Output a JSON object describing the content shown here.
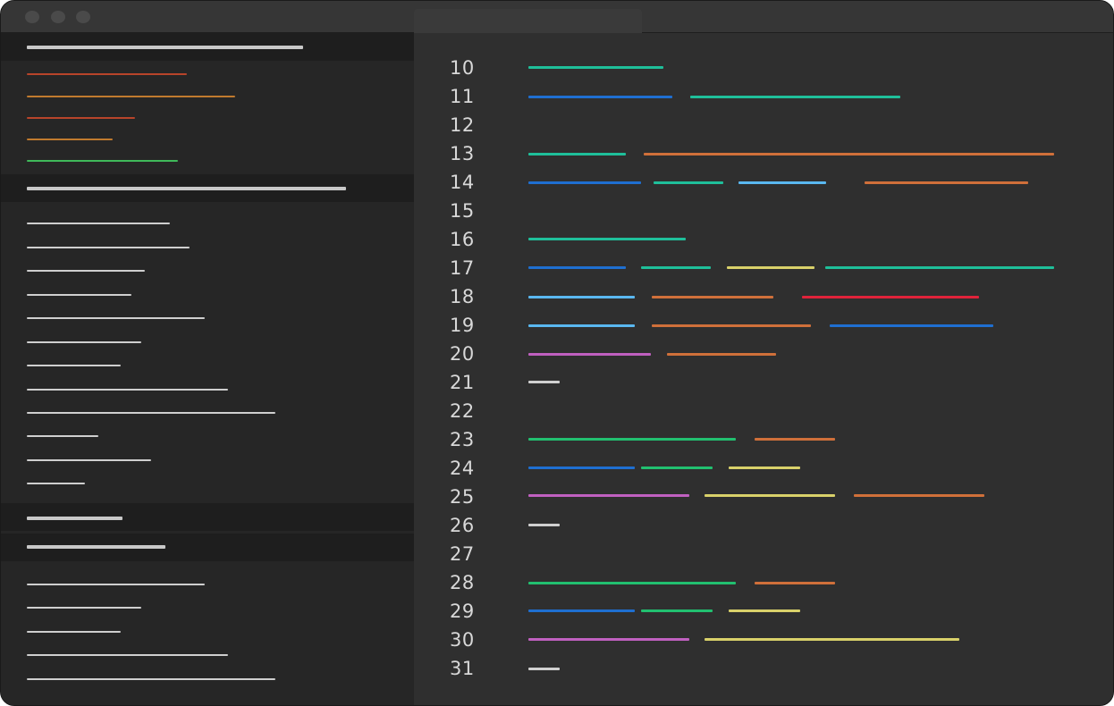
{
  "window": {
    "title": "",
    "active_tab": ""
  },
  "colors": {
    "window_bg": "#2d2d2d",
    "sidebar_bg": "#262626",
    "section_header_bg": "#1e1e1e",
    "editor_bg": "#2f2f2f",
    "line_number": "#d8d8d8",
    "token_teal": "#1fbf9a",
    "token_blue": "#1f6fd1",
    "token_orange": "#d0703a",
    "token_light_blue": "#5ab8f0",
    "token_yellow": "#d9d16a",
    "token_red": "#e0233a",
    "token_purple": "#c060c0",
    "token_green": "#22c070",
    "token_white": "#d0d0d0"
  },
  "editor": {
    "line_numbers": [
      "10",
      "11",
      "12",
      "13",
      "14",
      "15",
      "16",
      "17",
      "18",
      "19",
      "20",
      "21",
      "22",
      "23",
      "24",
      "25",
      "26",
      "27",
      "28",
      "29",
      "30",
      "31"
    ]
  }
}
